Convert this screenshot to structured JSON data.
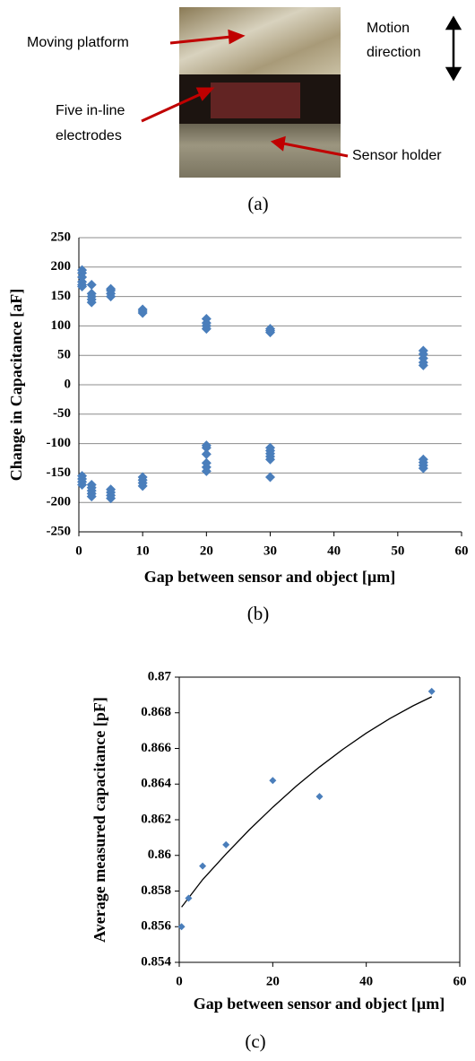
{
  "figure_a": {
    "platform_label": "Moving platform",
    "electrodes_label": [
      "Five in-line",
      "electrodes"
    ],
    "holder_label": "Sensor holder",
    "motion_label": [
      "Motion",
      "direction"
    ],
    "caption": "(a)"
  },
  "chart_data": [
    {
      "type": "scatter",
      "caption": "(b)",
      "x_label": "Gap between sensor and object [µm]",
      "y_label": "Change in Capacitance [aF]",
      "xlim": [
        0,
        60
      ],
      "xticks": [
        0,
        10,
        20,
        30,
        40,
        50,
        60
      ],
      "ylim": [
        -250,
        250
      ],
      "yticks": [
        -250,
        -200,
        -150,
        -100,
        -50,
        0,
        50,
        100,
        150,
        200,
        250
      ],
      "grid": true,
      "color": "#4a7ebb",
      "x": [
        0.5,
        0.5,
        0.5,
        0.5,
        0.5,
        0.5,
        0.5,
        0.5,
        0.5,
        0.5,
        2,
        2,
        2,
        2,
        2,
        2,
        2,
        2,
        2,
        2,
        5,
        5,
        5,
        5,
        5,
        5,
        5,
        5,
        10,
        10,
        10,
        10,
        10,
        10,
        10,
        20,
        20,
        20,
        20,
        20,
        20,
        20,
        20,
        20,
        20,
        30,
        30,
        30,
        30,
        30,
        30,
        30,
        30,
        30,
        54,
        54,
        54,
        54,
        54,
        54,
        54,
        54,
        54
      ],
      "values": [
        195,
        190,
        183,
        175,
        170,
        167,
        -155,
        -160,
        -165,
        -170,
        170,
        155,
        150,
        145,
        140,
        -170,
        -175,
        -180,
        -185,
        -190,
        163,
        160,
        155,
        150,
        -178,
        -183,
        -188,
        -193,
        128,
        125,
        122,
        -157,
        -162,
        -167,
        -172,
        112,
        105,
        100,
        95,
        -103,
        -107,
        -118,
        -133,
        -140,
        -147,
        95,
        92,
        89,
        -107,
        -112,
        -117,
        -122,
        -127,
        -157,
        58,
        52,
        45,
        38,
        33,
        -127,
        -132,
        -137,
        -142
      ]
    },
    {
      "type": "scatter",
      "caption": "(c)",
      "x_label": "Gap between sensor and object [µm]",
      "y_label": "Average measured capacitance [pF]",
      "xlim": [
        0,
        60
      ],
      "xticks": [
        0,
        20,
        40,
        60
      ],
      "ylim": [
        0.854,
        0.87
      ],
      "yticks": [
        0.854,
        0.856,
        0.858,
        0.86,
        0.862,
        0.864,
        0.866,
        0.868,
        0.87
      ],
      "grid": false,
      "color": "#4a7ebb",
      "x": [
        0.5,
        2,
        5,
        10,
        20,
        30,
        54
      ],
      "values": [
        0.856,
        0.8576,
        0.8594,
        0.8606,
        0.8642,
        0.8633,
        0.8692
      ],
      "trendline": {
        "color": "#000000",
        "x": [
          0.5,
          5,
          10,
          15,
          20,
          25,
          30,
          35,
          40,
          45,
          50,
          54
        ],
        "values": [
          0.8571,
          0.85864,
          0.86008,
          0.86144,
          0.8627,
          0.86388,
          0.86496,
          0.86595,
          0.86686,
          0.86767,
          0.86839,
          0.8689
        ]
      }
    }
  ]
}
